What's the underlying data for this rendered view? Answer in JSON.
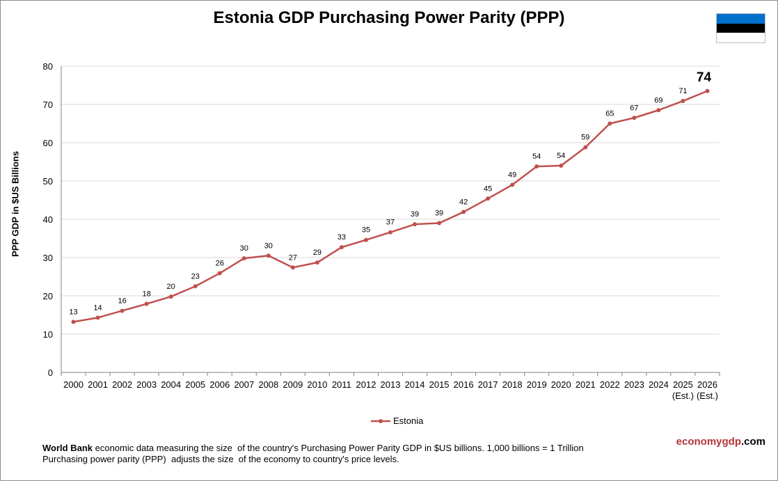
{
  "title": "Estonia GDP Purchasing Power Parity (PPP)",
  "flag": {
    "colors": [
      "#0072CE",
      "#000000",
      "#FFFFFF"
    ]
  },
  "legend": {
    "label": "Estonia",
    "color": "#C0504D"
  },
  "footer": {
    "line1_bold": "World Bank",
    "line1_rest": " economic data measuring the size  of the country's Purchasing Power Parity GDP in $US billions. 1,000 billions = 1 Trillion",
    "line2": "Purchasing power parity (PPP)  adjusts the size  of the economy to country's price levels."
  },
  "brand": {
    "part1": "economygdp",
    "part2": ".com"
  },
  "chart_data": {
    "type": "line",
    "title": "Estonia GDP Purchasing Power Parity (PPP)",
    "ylabel": "PPP GDP in $US Billions",
    "xlabel": "",
    "ylim": [
      0,
      80
    ],
    "yticks": [
      0,
      10,
      20,
      30,
      40,
      50,
      60,
      70,
      80
    ],
    "grid": true,
    "legend_position": "bottom",
    "categories": [
      "2000",
      "2001",
      "2002",
      "2003",
      "2004",
      "2005",
      "2006",
      "2007",
      "2008",
      "2009",
      "2010",
      "2011",
      "2012",
      "2013",
      "2014",
      "2015",
      "2016",
      "2017",
      "2018",
      "2019",
      "2020",
      "2021",
      "2022",
      "2023",
      "2024",
      "2025",
      "2026"
    ],
    "category_sublabels": [
      "",
      "",
      "",
      "",
      "",
      "",
      "",
      "",
      "",
      "",
      "",
      "",
      "",
      "",
      "",
      "",
      "",
      "",
      "",
      "",
      "",
      "",
      "",
      "",
      "",
      "(Est.)",
      "(Est.)"
    ],
    "series": [
      {
        "name": "Estonia",
        "color": "#C0504D",
        "values": [
          13.2,
          14.3,
          16.1,
          17.9,
          19.8,
          22.5,
          25.9,
          29.8,
          30.5,
          27.4,
          28.7,
          32.7,
          34.6,
          36.6,
          38.7,
          39.0,
          41.9,
          45.4,
          49.0,
          53.8,
          54.0,
          58.8,
          65.0,
          66.5,
          68.5,
          70.9,
          73.5
        ],
        "labels": [
          "13",
          "14",
          "16",
          "18",
          "20",
          "23",
          "26",
          "30",
          "30",
          "27",
          "29",
          "33",
          "35",
          "37",
          "39",
          "39",
          "42",
          "45",
          "49",
          "54",
          "54",
          "59",
          "65",
          "67",
          "69",
          "71",
          "74"
        ]
      }
    ]
  }
}
